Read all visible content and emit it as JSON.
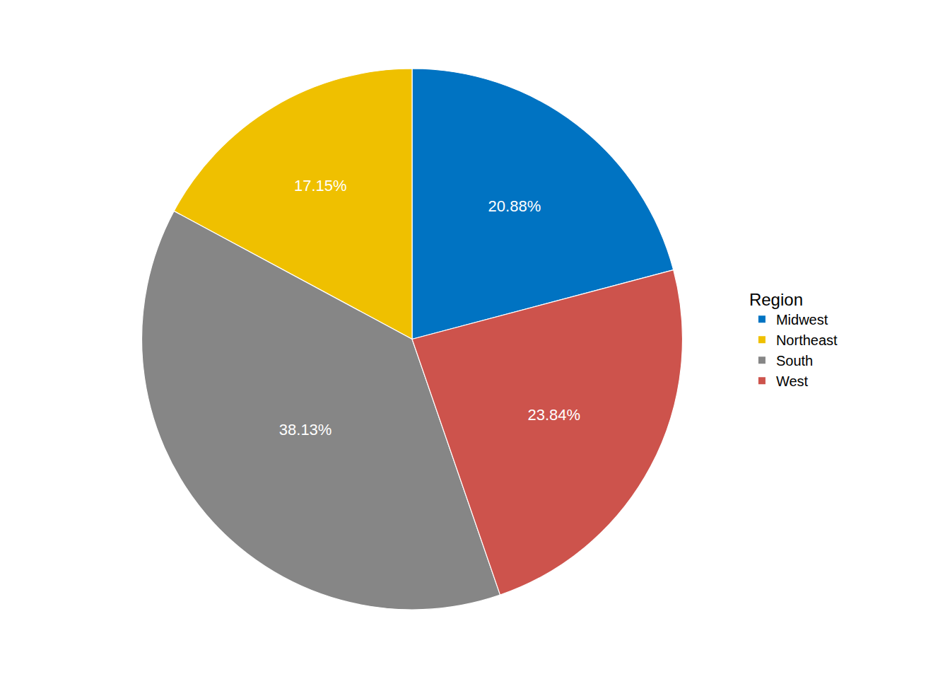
{
  "chart_data": {
    "type": "pie",
    "categories": [
      "Midwest",
      "Northeast",
      "South",
      "West"
    ],
    "values": [
      20.88,
      17.15,
      38.13,
      23.84
    ],
    "value_labels": [
      "20.88%",
      "17.15%",
      "38.13%",
      "23.84%"
    ],
    "colors": [
      "#0073C2",
      "#EFC000",
      "#868686",
      "#CD534C"
    ],
    "data_labels": true,
    "legend_title": "Region",
    "legend": "right"
  }
}
